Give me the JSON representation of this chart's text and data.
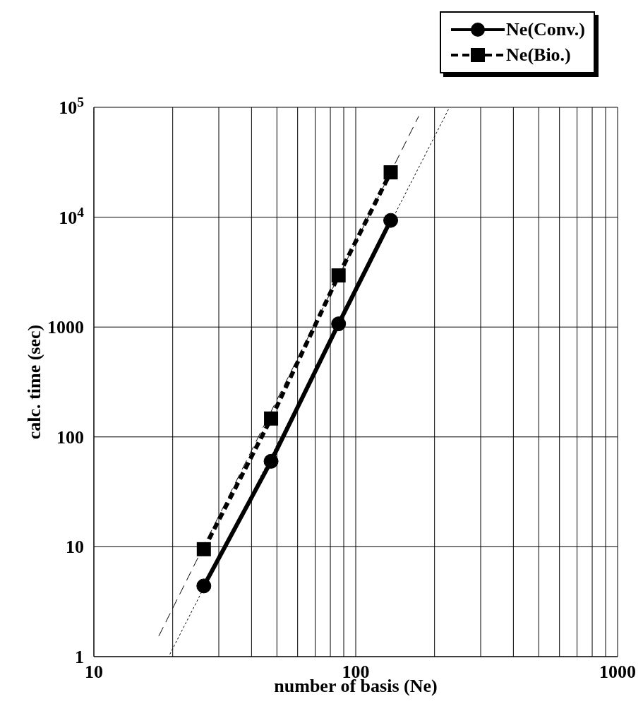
{
  "chart_data": {
    "type": "line",
    "xlabel": "number of basis (Ne)",
    "ylabel": "calc. time (sec)",
    "log": "xy",
    "xlim": [
      10,
      1000
    ],
    "ylim": [
      1,
      100000
    ],
    "xticks": [
      10,
      {
        "value": 20,
        "label": null
      },
      {
        "value": 30,
        "label": null
      },
      {
        "value": 40,
        "label": null
      },
      {
        "value": 50,
        "label": null
      },
      {
        "value": 60,
        "label": null
      },
      {
        "value": 70,
        "label": null
      },
      {
        "value": 80,
        "label": null
      },
      {
        "value": 90,
        "label": null
      },
      100,
      {
        "value": 200,
        "label": null
      },
      {
        "value": 300,
        "label": null
      },
      {
        "value": 400,
        "label": null
      },
      {
        "value": 500,
        "label": null
      },
      {
        "value": 600,
        "label": null
      },
      {
        "value": 700,
        "label": null
      },
      {
        "value": 800,
        "label": null
      },
      {
        "value": 900,
        "label": null
      },
      1000
    ],
    "yticks": [
      1,
      10,
      100,
      1000,
      {
        "value": 10000,
        "label": "10$^{4}$"
      },
      {
        "value": 100000,
        "label": "10$^{5}$"
      }
    ],
    "grid": true,
    "legend": "top right",
    "series": [
      {
        "name": "Ne(Conv.)",
        "color": "#000000",
        "marker": "circle",
        "line_style": "solid",
        "x": [
          26.3,
          47.5,
          86,
          136
        ],
        "values": [
          4.4,
          60,
          1070,
          9350
        ]
      },
      {
        "name": "Ne(Bio.)",
        "color": "#000000",
        "marker": "square",
        "line_style": "dashed",
        "x": [
          26.3,
          47.5,
          86,
          136
        ],
        "values": [
          9.5,
          147,
          2950,
          25600
        ]
      },
      {
        "color": "#000000",
        "marker": "none",
        "line_style": "dashed",
        "x": [
          17.7,
          174
        ],
        "values": [
          1.54,
          83000
        ]
      },
      {
        "color": "#000000",
        "marker": "none",
        "line_style": "dotted",
        "x": [
          19.5,
          227
        ],
        "values": [
          1.05,
          97800
        ]
      }
    ]
  }
}
